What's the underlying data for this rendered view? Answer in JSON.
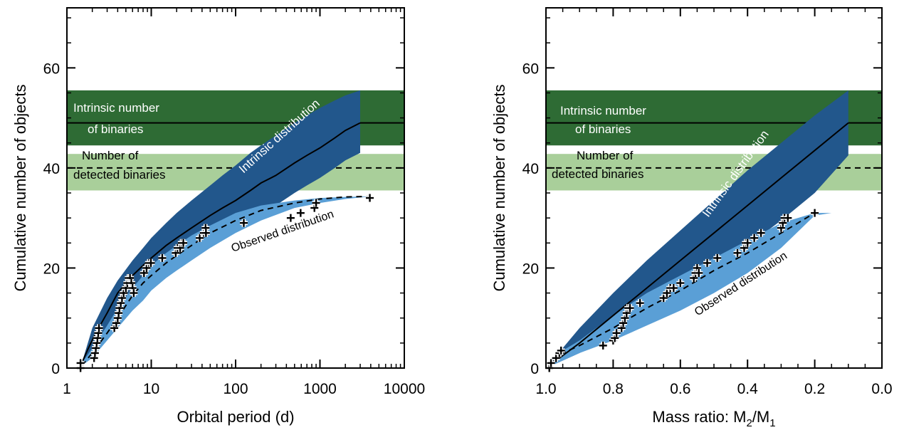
{
  "colors": {
    "intrinsic_band": "#2e6b34",
    "detected_band": "#a9cf9a",
    "intrinsic_fill": "#22578c",
    "observed_fill": "#5a9fd6",
    "observed_fill_light": "#8fc4ea",
    "line": "#000000"
  },
  "chart_data": [
    {
      "type": "line",
      "panel": "left",
      "xlabel": "Orbital period (d)",
      "ylabel": "Cumulative number of objects",
      "xscale": "log",
      "xlim": [
        1,
        10000
      ],
      "ylim": [
        0,
        72
      ],
      "xticks": [
        1,
        10,
        100,
        1000,
        10000
      ],
      "xtick_labels": [
        "1",
        "10",
        "100",
        "1000",
        "10000"
      ],
      "yticks": [
        0,
        20,
        40,
        60
      ],
      "ytick_labels": [
        "0",
        "20",
        "40",
        "60"
      ],
      "grid": false,
      "bands": [
        {
          "name": "intrinsic",
          "y0": 44.5,
          "y1": 55.5,
          "label_lines": [
            "Intrinsic number",
            "of binaries"
          ],
          "level": 49
        },
        {
          "name": "detected",
          "y0": 35.5,
          "y1": 42.8,
          "label_lines": [
            "Number of",
            "detected binaries"
          ],
          "level": 40
        }
      ],
      "intrinsic": {
        "label": "Intrinsic distribution",
        "line": {
          "x": [
            1.5,
            1.8,
            2.2,
            3,
            4,
            6,
            8,
            10,
            15,
            20,
            30,
            50,
            70,
            100,
            150,
            200,
            300,
            500,
            700,
            1000,
            1500,
            2000,
            3000
          ],
          "y": [
            1,
            4,
            7,
            11,
            15,
            18.5,
            20.5,
            22,
            24.5,
            26,
            28,
            30.5,
            32,
            33.5,
            35.5,
            37,
            38.5,
            41,
            42.5,
            44,
            46,
            47.5,
            49
          ]
        },
        "upper": {
          "x": [
            1.5,
            2,
            3,
            4,
            6,
            8,
            10,
            15,
            20,
            30,
            50,
            70,
            100,
            150,
            200,
            300,
            500,
            700,
            1000,
            1500,
            2000,
            3000
          ],
          "y": [
            1,
            8,
            14,
            17.5,
            21.5,
            24,
            26,
            29,
            31,
            33.5,
            36.5,
            38.5,
            40.5,
            43,
            44.5,
            46.5,
            49,
            50.5,
            52,
            53.5,
            54.5,
            55.5
          ]
        },
        "lower": {
          "x": [
            1.5,
            2,
            3,
            4,
            6,
            8,
            10,
            15,
            20,
            30,
            50,
            70,
            100,
            150,
            200,
            300,
            500,
            700,
            1000,
            1500,
            2000,
            3000
          ],
          "y": [
            1,
            3,
            6.5,
            9,
            12.5,
            14.5,
            16,
            18.5,
            20,
            22,
            24.5,
            26,
            27.5,
            29.5,
            31,
            32.5,
            35,
            36.5,
            38,
            40,
            41.5,
            43
          ]
        }
      },
      "observed": {
        "label": "Observed distribution",
        "line": {
          "x": [
            1.5,
            2,
            3,
            4,
            5,
            6,
            8,
            10,
            15,
            20,
            30,
            50,
            100,
            200,
            500,
            1000,
            2000,
            4000
          ],
          "y": [
            0.5,
            3,
            7,
            10,
            12.5,
            14.5,
            17,
            18.5,
            21,
            22.5,
            24.5,
            27,
            29.5,
            31.5,
            33,
            33.8,
            34.2,
            34.3
          ]
        },
        "upper": {
          "x": [
            1.5,
            2,
            3,
            4,
            6,
            8,
            10,
            15,
            20,
            30,
            50,
            100,
            200,
            500,
            1000,
            2000,
            4000
          ],
          "y": [
            1,
            4,
            8.5,
            12,
            16,
            18.5,
            20.5,
            23,
            24.5,
            26.5,
            28.5,
            31,
            32.5,
            33.5,
            34,
            34.2,
            34.3
          ]
        },
        "lower": {
          "x": [
            1.5,
            2,
            3,
            4,
            6,
            8,
            10,
            15,
            20,
            30,
            50,
            100,
            200,
            500,
            1000,
            2000,
            4000
          ],
          "y": [
            0.5,
            2,
            5.5,
            8,
            11.5,
            13.5,
            15.5,
            18,
            19.5,
            21.5,
            24,
            27,
            29.5,
            32,
            33,
            33.8,
            34.3
          ]
        }
      },
      "points": {
        "x": [
          1.45,
          1.45,
          2.1,
          2.15,
          2.2,
          2.25,
          2.3,
          2.35,
          2.4,
          3.65,
          3.85,
          4.0,
          4.1,
          4.2,
          4.35,
          4.5,
          4.7,
          5.0,
          5.2,
          5.4,
          5.6,
          5.8,
          6.0,
          6.2,
          8.2,
          8.8,
          9.4,
          9.9,
          13.5,
          19.5,
          20.5,
          22.0,
          23.0,
          24.0,
          37.5,
          42.0,
          44.0,
          44.5,
          125.0,
          450.0,
          590.0,
          860.0,
          900.0,
          3900.0
        ],
        "y": [
          0,
          1,
          2,
          3,
          4,
          5,
          6,
          7,
          8,
          8,
          9,
          10,
          11,
          12,
          13,
          14,
          15,
          16,
          17,
          18,
          18,
          17,
          16,
          15,
          19,
          20,
          21,
          21,
          22,
          23,
          24,
          24,
          25,
          25,
          26,
          27,
          28,
          27,
          29,
          30,
          31,
          32,
          33,
          34
        ]
      }
    },
    {
      "type": "line",
      "panel": "right",
      "xlabel_main": "Mass ratio: M",
      "xlabel_sub1": "2",
      "xlabel_mid": "/M",
      "xlabel_sub2": "1",
      "ylabel": "Cumulative number of objects",
      "xscale": "linear",
      "xlim": [
        1.0,
        0.0
      ],
      "ylim": [
        0,
        72
      ],
      "xticks": [
        1.0,
        0.8,
        0.6,
        0.4,
        0.2,
        0.0
      ],
      "xtick_labels": [
        "1.0",
        "0.8",
        "0.6",
        "0.4",
        "0.2",
        "0.0"
      ],
      "yticks": [
        0,
        20,
        40,
        60
      ],
      "ytick_labels": [
        "0",
        "20",
        "40",
        "60"
      ],
      "grid": false,
      "bands": [
        {
          "name": "intrinsic",
          "y0": 44.5,
          "y1": 55.5,
          "label_lines": [
            "Intrinsic number",
            "of binaries"
          ],
          "level": 49
        },
        {
          "name": "detected",
          "y0": 35.5,
          "y1": 42.8,
          "label_lines": [
            "Number of",
            "detected binaries"
          ],
          "level": 40
        }
      ],
      "intrinsic": {
        "label": "Intrinsic distribution",
        "line": {
          "x": [
            1.0,
            0.95,
            0.9,
            0.8,
            0.7,
            0.6,
            0.5,
            0.4,
            0.3,
            0.2,
            0.1
          ],
          "y": [
            0,
            2.5,
            5,
            10.5,
            16,
            21.5,
            27,
            32.5,
            38,
            43.5,
            49
          ]
        },
        "upper": {
          "x": [
            1.0,
            0.95,
            0.9,
            0.8,
            0.7,
            0.6,
            0.5,
            0.4,
            0.3,
            0.2,
            0.1
          ],
          "y": [
            0,
            4,
            8,
            15,
            21.5,
            27.5,
            33.5,
            39.5,
            45,
            50.5,
            55.5
          ]
        },
        "lower": {
          "x": [
            1.0,
            0.95,
            0.9,
            0.8,
            0.7,
            0.6,
            0.5,
            0.4,
            0.3,
            0.2,
            0.1
          ],
          "y": [
            0,
            1.5,
            3,
            7,
            11,
            15.5,
            20,
            24.5,
            29.5,
            35,
            42.5
          ]
        }
      },
      "observed": {
        "label": "Observed distribution",
        "line": {
          "x": [
            1.0,
            0.95,
            0.9,
            0.8,
            0.7,
            0.6,
            0.5,
            0.4,
            0.3,
            0.2
          ],
          "y": [
            0,
            3,
            4.5,
            8,
            12,
            15.5,
            19.5,
            23,
            27,
            31
          ]
        },
        "upper": {
          "x": [
            1.0,
            0.95,
            0.9,
            0.8,
            0.7,
            0.6,
            0.5,
            0.4,
            0.3,
            0.2,
            0.15
          ],
          "y": [
            0,
            3.5,
            5.5,
            10.5,
            15,
            18.5,
            22,
            25.5,
            29,
            31,
            31
          ]
        },
        "lower": {
          "x": [
            1.0,
            0.95,
            0.9,
            0.8,
            0.7,
            0.6,
            0.5,
            0.4,
            0.3,
            0.2,
            0.15
          ],
          "y": [
            0,
            1.5,
            3,
            5.5,
            8.5,
            11.5,
            15,
            19,
            24,
            30.5,
            31
          ]
        }
      },
      "points": {
        "x": [
          0.99,
          0.985,
          0.97,
          0.96,
          0.955,
          0.83,
          0.8,
          0.795,
          0.79,
          0.775,
          0.77,
          0.765,
          0.76,
          0.755,
          0.75,
          0.72,
          0.65,
          0.64,
          0.63,
          0.62,
          0.6,
          0.56,
          0.555,
          0.55,
          0.545,
          0.52,
          0.49,
          0.43,
          0.41,
          0.405,
          0.4,
          0.38,
          0.36,
          0.3,
          0.295,
          0.29,
          0.28,
          0.2
        ],
        "y": [
          0,
          1,
          2,
          3,
          3.5,
          4.5,
          5.5,
          6,
          7,
          8,
          9,
          10,
          11,
          12,
          12,
          13,
          14,
          15,
          16,
          16,
          17,
          18,
          19,
          20,
          19,
          21,
          22,
          23,
          24,
          25,
          25,
          26,
          27,
          28,
          29,
          30,
          30,
          31
        ]
      }
    }
  ]
}
